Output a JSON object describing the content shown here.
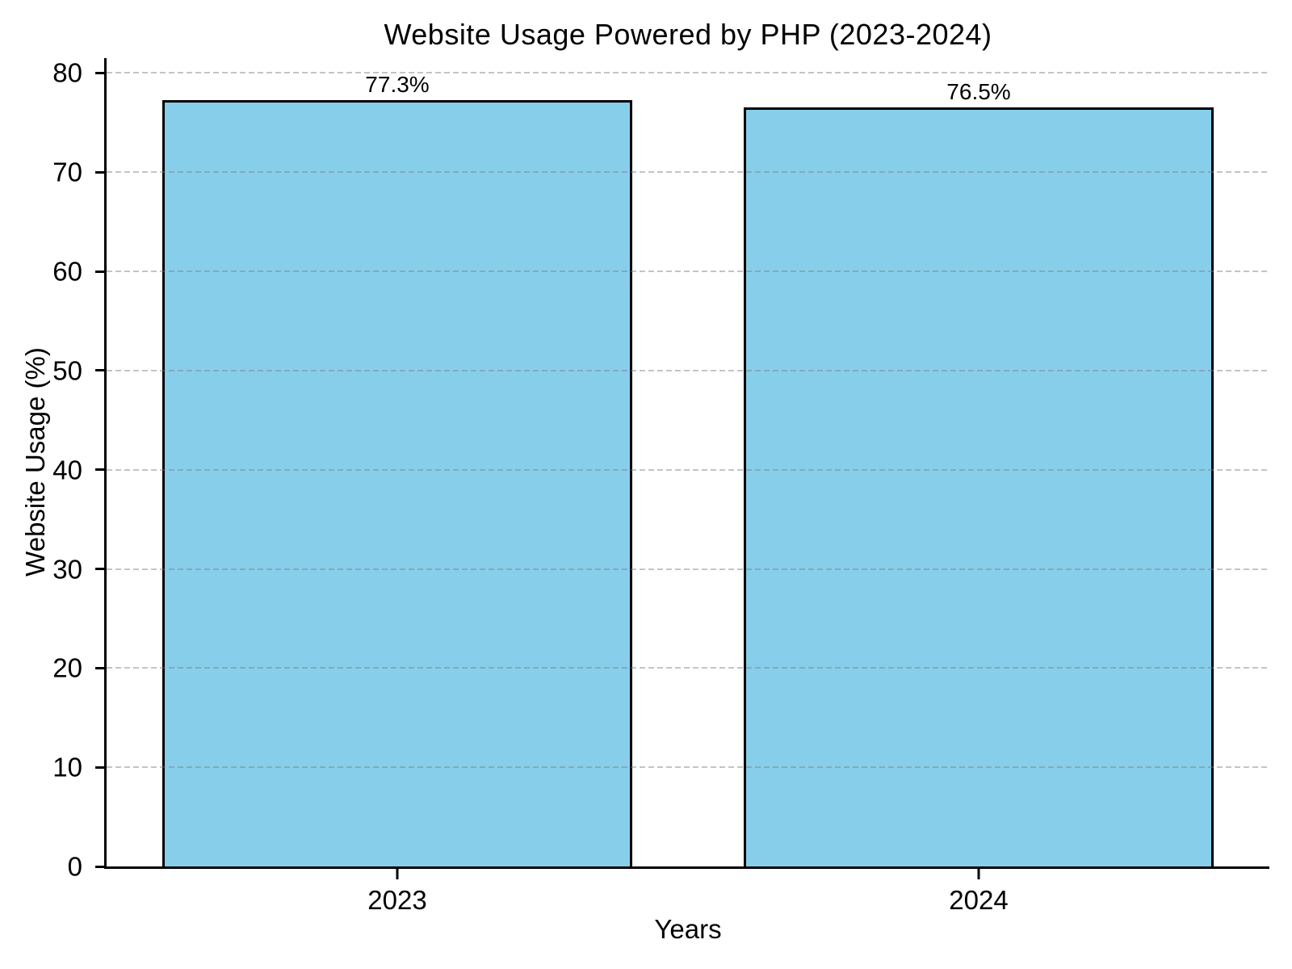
{
  "chart_data": {
    "type": "bar",
    "title": "Website Usage Powered by PHP (2023-2024)",
    "xlabel": "Years",
    "ylabel": "Website Usage (%)",
    "categories": [
      "2023",
      "2024"
    ],
    "values": [
      77.3,
      76.5
    ],
    "bar_labels": [
      "77.3%",
      "76.5%"
    ],
    "yticks": [
      0,
      10,
      20,
      30,
      40,
      50,
      60,
      70,
      80
    ],
    "ylim": [
      0,
      81.5
    ],
    "bar_color": "#87CEEB",
    "bar_edge_color": "#000000",
    "axis_color": "#000000",
    "grid": true,
    "grid_style": "dashed",
    "grid_color": "#c8c8c8",
    "grid_on_top_of_bars": true,
    "legend": "none",
    "bar_width_fraction": 0.404
  }
}
